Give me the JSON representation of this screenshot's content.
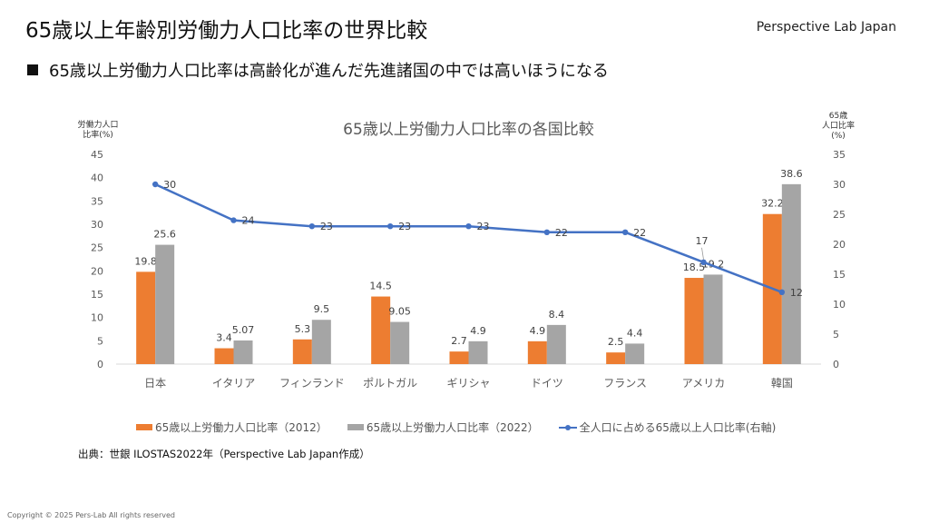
{
  "header": {
    "title": "65歳以上年齢別労働力人口比率の世界比較",
    "brand": "Perspective Lab Japan",
    "subtitle": "65歳以上労働力人口比率は高齢化が進んだ先進諸国の中では高いほうになる"
  },
  "colors": {
    "s2012": "#ED7D31",
    "s2022": "#A5A5A5",
    "line": "#4472C4"
  },
  "chart_data": {
    "type": "bar",
    "title": "65歳以上労働力人口比率の各国比較",
    "ylabel": [
      "労働力人口",
      "比率(%)"
    ],
    "y2label": [
      "65歳",
      "人口比率",
      "(%)"
    ],
    "ylim": [
      0,
      45
    ],
    "yticks": [
      0,
      5,
      10,
      15,
      20,
      25,
      30,
      35,
      40,
      45
    ],
    "y2lim": [
      0,
      35
    ],
    "y2ticks": [
      0,
      5,
      10,
      15,
      20,
      25,
      30,
      35
    ],
    "categories": [
      "日本",
      "イタリア",
      "フィンランド",
      "ポルトガル",
      "ギリシャ",
      "ドイツ",
      "フランス",
      "アメリカ",
      "韓国"
    ],
    "series": [
      {
        "name": "65歳以上労働力人口比率（2012）",
        "type": "bar",
        "axis": "left",
        "values": [
          19.8,
          3.4,
          5.3,
          14.5,
          2.7,
          4.9,
          2.5,
          18.5,
          32.2
        ],
        "labels": [
          "19.8",
          "3.4",
          "5.3",
          "14.5",
          "2.7",
          "4.9",
          "2.5",
          "18.5",
          "32.2"
        ]
      },
      {
        "name": "65歳以上労働力人口比率（2022）",
        "type": "bar",
        "axis": "left",
        "values": [
          25.6,
          5.07,
          9.5,
          9.05,
          4.9,
          8.4,
          4.4,
          19.2,
          38.6
        ],
        "labels": [
          "25.6",
          "5.07",
          "9.5",
          "9.05",
          "4.9",
          "8.4",
          "4.4",
          "19.2",
          "38.6"
        ]
      },
      {
        "name": "全人口に占める65歳以上人口比率(右軸)",
        "type": "line",
        "axis": "right",
        "values": [
          30,
          24,
          23,
          23,
          23,
          22,
          22,
          17,
          12
        ],
        "labels": [
          "30",
          "24",
          "23",
          "23",
          "23",
          "22",
          "22",
          "17",
          "12"
        ]
      }
    ],
    "legend": "bottom"
  },
  "footer": {
    "source": "出典：世銀  ILOSTAS2022年（Perspective Lab Japan作成）",
    "copyright": "Copyright © 2025 Pers-Lab All rights reserved"
  }
}
